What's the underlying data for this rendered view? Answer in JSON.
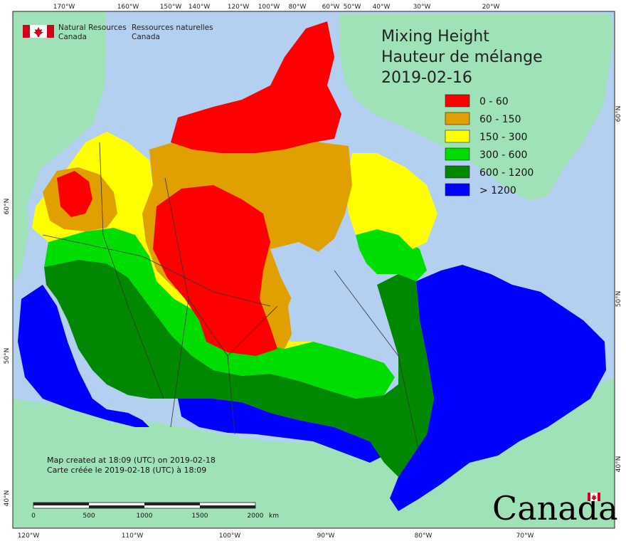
{
  "agency": {
    "name_en_1": "Natural Resources",
    "name_en_2": "Canada",
    "name_fr_1": "Ressources naturelles",
    "name_fr_2": "Canada"
  },
  "title": {
    "line1": "Mixing Height",
    "line2": "Hauteur de mélange",
    "date": "2019-02-16"
  },
  "legend": [
    {
      "label": "0 - 60",
      "color": "#ff0000"
    },
    {
      "label": "60 - 150",
      "color": "#e0a000"
    },
    {
      "label": "150 - 300",
      "color": "#ffff00"
    },
    {
      "label": "300 - 600",
      "color": "#00dd00"
    },
    {
      "label": "600 - 1200",
      "color": "#008800"
    },
    {
      "label": "> 1200",
      "color": "#0000ff"
    }
  ],
  "top_ticks": [
    "170°W",
    "160°W",
    "150°W",
    "140°W",
    "120°W",
    "100°W",
    "80°W",
    "60°W",
    "50°W",
    "40°W",
    "30°W",
    "20°W"
  ],
  "bottom_ticks": [
    "120°W",
    "110°W",
    "100°W",
    "90°W",
    "80°W",
    "70°W"
  ],
  "left_ticks": [
    "60°N",
    "50°N",
    "40°N"
  ],
  "right_ticks": [
    "60°N",
    "50°N",
    "40°N"
  ],
  "credit": {
    "line1": "Map created at 18:09 (UTC) on 2019-02-18",
    "line2": "Carte créée le 2019-02-18 (UTC) à 18:09"
  },
  "scale": {
    "labels": [
      "0",
      "500",
      "1000",
      "1500",
      "2000"
    ],
    "unit": "km"
  },
  "wordmark": "Canada",
  "colors": {
    "ocean": "#b4d0f0",
    "land": "#a0e2b8",
    "border": "#333333"
  }
}
